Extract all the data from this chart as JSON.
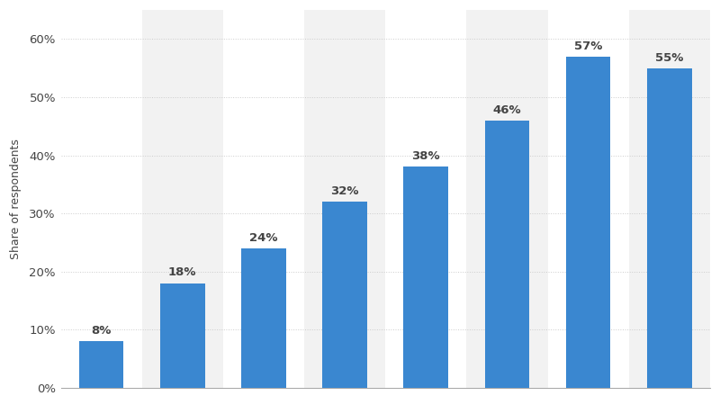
{
  "values": [
    8,
    18,
    24,
    32,
    38,
    46,
    57,
    55
  ],
  "labels": [
    "8%",
    "18%",
    "24%",
    "32%",
    "38%",
    "46%",
    "57%",
    "55%"
  ],
  "bar_color": "#3a87d0",
  "background_color": "#ffffff",
  "plot_background_color": "#ffffff",
  "column_band_color": "#f2f2f2",
  "ylabel": "Share of respondents",
  "ylim": [
    0,
    65
  ],
  "yticks": [
    0,
    10,
    20,
    30,
    40,
    50,
    60
  ],
  "ytick_labels": [
    "0%",
    "10%",
    "20%",
    "30%",
    "40%",
    "50%",
    "60%"
  ],
  "grid_color": "#cccccc",
  "label_fontsize": 9.5,
  "ylabel_fontsize": 9,
  "tick_fontsize": 9.5,
  "annotation_color": "#444444",
  "bar_width": 0.55
}
